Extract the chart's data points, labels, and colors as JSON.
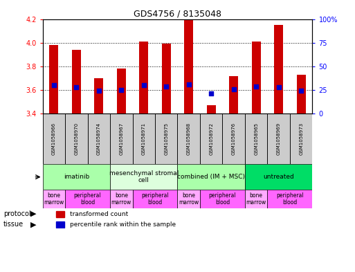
{
  "title": "GDS4756 / 8135048",
  "samples": [
    "GSM1058966",
    "GSM1058970",
    "GSM1058974",
    "GSM1058967",
    "GSM1058971",
    "GSM1058975",
    "GSM1058968",
    "GSM1058972",
    "GSM1058976",
    "GSM1058965",
    "GSM1058969",
    "GSM1058973"
  ],
  "bar_values": [
    3.98,
    3.94,
    3.7,
    3.78,
    4.01,
    3.99,
    4.2,
    3.47,
    3.72,
    4.01,
    4.15,
    3.73
  ],
  "percentile_values": [
    30,
    28,
    24,
    25,
    30,
    29,
    31,
    21,
    26,
    29,
    28,
    24
  ],
  "ylim_left": [
    3.4,
    4.2
  ],
  "ylim_right": [
    0,
    100
  ],
  "yticks_left": [
    3.4,
    3.6,
    3.8,
    4.0,
    4.2
  ],
  "yticks_right": [
    0,
    25,
    50,
    75,
    100
  ],
  "bar_color": "#cc0000",
  "percentile_color": "#0000cc",
  "grid_color": "#000000",
  "protocols": [
    {
      "label": "imatinib",
      "start": 0,
      "end": 3,
      "color": "#aaffaa"
    },
    {
      "label": "mesenchymal stromal\ncell",
      "start": 3,
      "end": 6,
      "color": "#ddffdd"
    },
    {
      "label": "combined (IM + MSC)",
      "start": 6,
      "end": 9,
      "color": "#aaffaa"
    },
    {
      "label": "untreated",
      "start": 9,
      "end": 12,
      "color": "#00dd66"
    }
  ],
  "tissues": [
    {
      "label": "bone\nmarrow",
      "start": 0,
      "end": 1,
      "color": "#ffaaff"
    },
    {
      "label": "peripheral\nblood",
      "start": 1,
      "end": 3,
      "color": "#ff66ff"
    },
    {
      "label": "bone\nmarrow",
      "start": 3,
      "end": 4,
      "color": "#ffaaff"
    },
    {
      "label": "peripheral\nblood",
      "start": 4,
      "end": 6,
      "color": "#ff66ff"
    },
    {
      "label": "bone\nmarrow",
      "start": 6,
      "end": 7,
      "color": "#ffaaff"
    },
    {
      "label": "peripheral\nblood",
      "start": 7,
      "end": 9,
      "color": "#ff66ff"
    },
    {
      "label": "bone\nmarrow",
      "start": 9,
      "end": 10,
      "color": "#ffaaff"
    },
    {
      "label": "peripheral\nblood",
      "start": 10,
      "end": 12,
      "color": "#ff66ff"
    }
  ],
  "legend_red": "transformed count",
  "legend_blue": "percentile rank within the sample",
  "bar_width": 0.4
}
